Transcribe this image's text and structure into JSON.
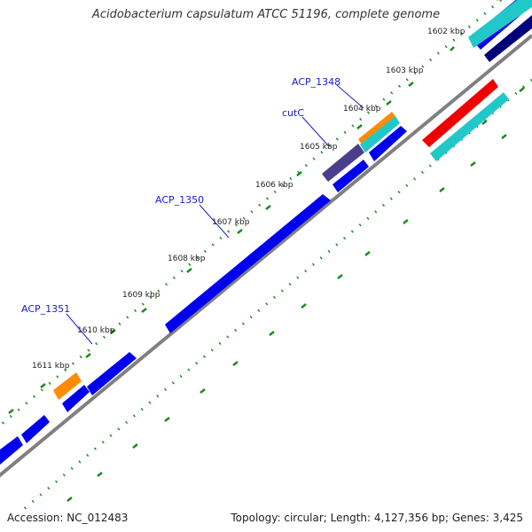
{
  "title": "Acidobacterium capsulatum ATCC 51196, complete genome",
  "footer": {
    "accession": "Accession: NC_012483",
    "summary": "Topology: circular; Length: 4,127,356 bp; Genes: 3,425"
  },
  "ticks": [
    {
      "label": "1602 kbp"
    },
    {
      "label": "1603 kbp"
    },
    {
      "label": "1604 kbp"
    },
    {
      "label": "1605 kbp"
    },
    {
      "label": "1606 kbp"
    },
    {
      "label": "1607 kbp"
    },
    {
      "label": "1608 kbp"
    },
    {
      "label": "1609 kbp"
    },
    {
      "label": "1610 kbp"
    },
    {
      "label": "1611 kbp"
    }
  ],
  "gene_labels": [
    {
      "name": "ACP_1348"
    },
    {
      "name": "cutC"
    },
    {
      "name": "ACP_1350"
    },
    {
      "name": "ACP_1351"
    }
  ],
  "colors": {
    "cds": "#0000ee",
    "cutC": "#4a3f8c",
    "orange_feature": "#ff8c00",
    "cyan_feature": "#22c8c8",
    "red_feature": "#ee0000",
    "backbone": "#808080",
    "gc_ticks": "#1f8a1f",
    "label_text": "#1a1acc"
  }
}
